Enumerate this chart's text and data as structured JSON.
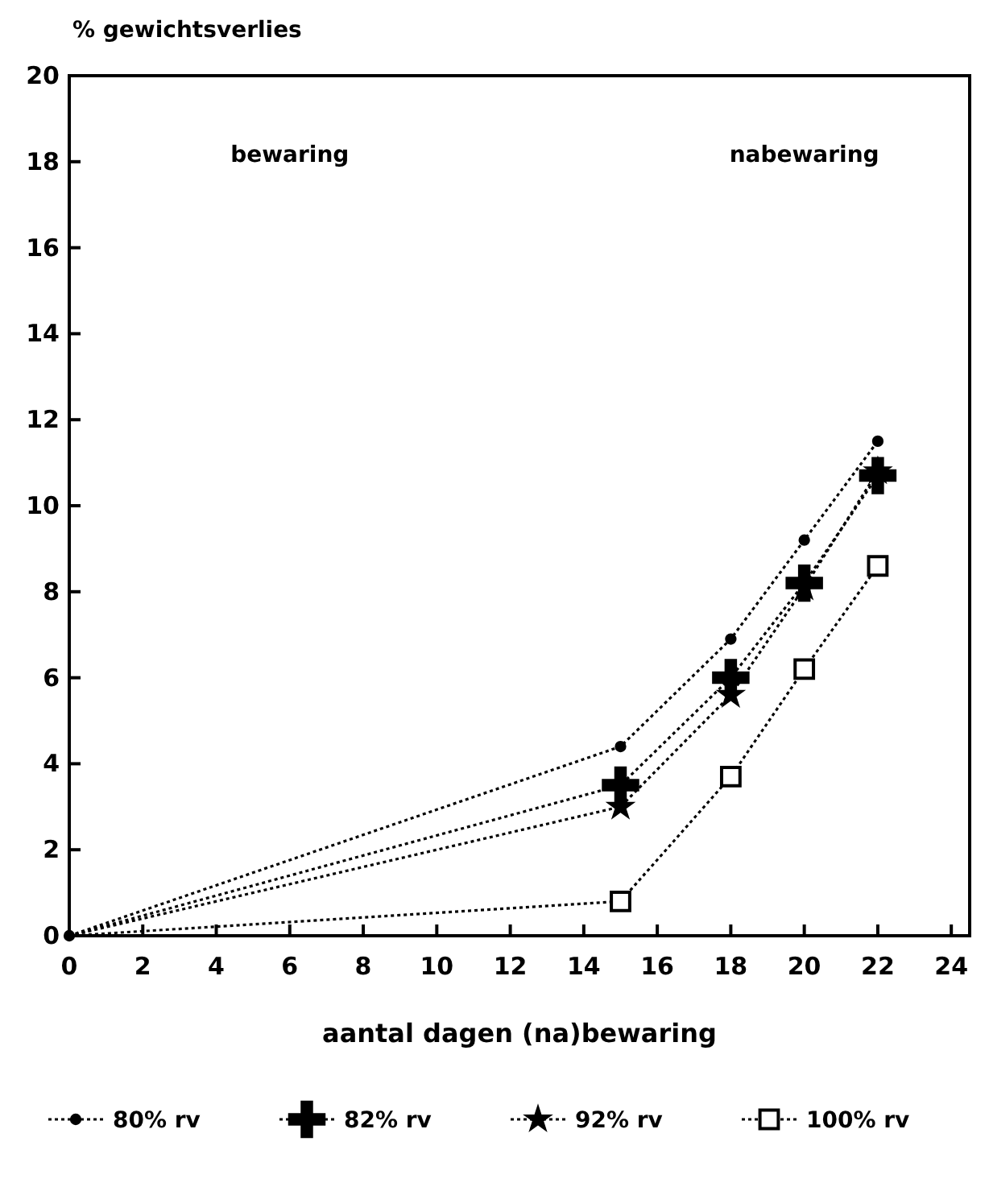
{
  "chart_data": {
    "type": "line",
    "ylabel": "% gewichtsverlies",
    "xlabel": "aantal dagen (na)bewaring",
    "xlim": [
      0,
      24.5
    ],
    "xticks": [
      0,
      2,
      4,
      6,
      8,
      10,
      12,
      14,
      16,
      18,
      20,
      22,
      24
    ],
    "ylim": [
      0,
      20
    ],
    "yticks": [
      0,
      2,
      4,
      6,
      8,
      10,
      12,
      14,
      16,
      18,
      20
    ],
    "x": [
      0,
      15,
      18,
      20,
      22
    ],
    "line_style": "dotted",
    "legend": "bottom",
    "grid": false,
    "annotations": [
      "bewaring",
      "nabewaring"
    ],
    "series": [
      {
        "name": "80% rv",
        "color": "#000000",
        "marker": "circle",
        "values": [
          0,
          4.4,
          6.9,
          9.2,
          11.5
        ]
      },
      {
        "name": "82% rv",
        "color": "#000000",
        "marker": "cross",
        "values": [
          0,
          3.5,
          6.0,
          8.2,
          10.7
        ]
      },
      {
        "name": "92% rv",
        "color": "#000000",
        "marker": "star",
        "values": [
          0,
          3.0,
          5.6,
          8.1,
          10.8
        ]
      },
      {
        "name": "100% rv",
        "color": "#000000",
        "marker": "square",
        "values": [
          0,
          0.8,
          3.7,
          6.2,
          8.6
        ]
      }
    ]
  }
}
